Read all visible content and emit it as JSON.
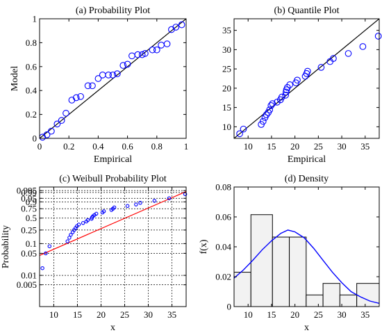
{
  "chart_data": [
    {
      "type": "scatter",
      "title": "(a) Probability Plot",
      "xlabel": "Empirical",
      "ylabel": "Model",
      "xlim": [
        0,
        1
      ],
      "ylim": [
        0,
        1
      ],
      "xticks": [
        0,
        0.2,
        0.4,
        0.6,
        0.8,
        1
      ],
      "xtick_labels": [
        "0",
        "0.2",
        "0.4",
        "0.6",
        "0.8",
        "1"
      ],
      "yticks": [
        0,
        0.2,
        0.4,
        0.6,
        0.8,
        1
      ],
      "ytick_labels": [
        "0",
        "0.2",
        "0.4",
        "0.6",
        "0.8",
        "1"
      ],
      "grid": false,
      "marker_color": "#0000ff",
      "line_color": "#000000",
      "reference_line": [
        [
          0,
          0
        ],
        [
          1,
          1
        ]
      ],
      "points": [
        [
          0.02,
          0.01
        ],
        [
          0.05,
          0.03
        ],
        [
          0.08,
          0.06
        ],
        [
          0.12,
          0.12
        ],
        [
          0.15,
          0.15
        ],
        [
          0.18,
          0.21
        ],
        [
          0.22,
          0.32
        ],
        [
          0.25,
          0.34
        ],
        [
          0.28,
          0.35
        ],
        [
          0.33,
          0.44
        ],
        [
          0.36,
          0.44
        ],
        [
          0.4,
          0.5
        ],
        [
          0.43,
          0.53
        ],
        [
          0.47,
          0.53
        ],
        [
          0.5,
          0.53
        ],
        [
          0.53,
          0.54
        ],
        [
          0.57,
          0.61
        ],
        [
          0.6,
          0.62
        ],
        [
          0.63,
          0.69
        ],
        [
          0.67,
          0.7
        ],
        [
          0.7,
          0.7
        ],
        [
          0.72,
          0.71
        ],
        [
          0.77,
          0.74
        ],
        [
          0.8,
          0.74
        ],
        [
          0.83,
          0.78
        ],
        [
          0.87,
          0.79
        ],
        [
          0.9,
          0.91
        ],
        [
          0.93,
          0.93
        ],
        [
          0.97,
          0.95
        ]
      ]
    },
    {
      "type": "scatter",
      "title": "(b) Quantile Plot",
      "xlabel": "Empirical",
      "ylabel": "",
      "xlim": [
        7,
        38
      ],
      "ylim": [
        7,
        38
      ],
      "xticks": [
        10,
        15,
        20,
        25,
        30,
        35
      ],
      "xtick_labels": [
        "10",
        "15",
        "20",
        "25",
        "30",
        "35"
      ],
      "yticks": [
        10,
        15,
        20,
        25,
        30,
        35
      ],
      "ytick_labels": [
        "10",
        "15",
        "20",
        "25",
        "30",
        "35"
      ],
      "grid": false,
      "marker_color": "#0000ff",
      "line_color": "#000000",
      "reference_line": [
        [
          7,
          7
        ],
        [
          38,
          38
        ]
      ],
      "points": [
        [
          8.2,
          8.2
        ],
        [
          9.0,
          9.4
        ],
        [
          12.8,
          10.6
        ],
        [
          13.2,
          11.4
        ],
        [
          13.6,
          12.4
        ],
        [
          13.9,
          13.1
        ],
        [
          14.3,
          13.7
        ],
        [
          14.6,
          14.4
        ],
        [
          14.9,
          15.5
        ],
        [
          15.2,
          16.0
        ],
        [
          16.2,
          16.4
        ],
        [
          16.9,
          17.0
        ],
        [
          17.2,
          17.7
        ],
        [
          18.0,
          18.2
        ],
        [
          18.1,
          19.0
        ],
        [
          18.2,
          19.6
        ],
        [
          18.4,
          20.2
        ],
        [
          18.9,
          20.9
        ],
        [
          20.2,
          21.4
        ],
        [
          20.5,
          22.1
        ],
        [
          22.2,
          23.1
        ],
        [
          22.5,
          23.8
        ],
        [
          22.7,
          24.4
        ],
        [
          25.6,
          25.4
        ],
        [
          27.5,
          26.9
        ],
        [
          28.2,
          27.7
        ],
        [
          31.4,
          29.0
        ],
        [
          34.5,
          30.8
        ],
        [
          37.8,
          33.5
        ]
      ]
    },
    {
      "type": "scatter",
      "title": "(c) Weibull Probability Plot",
      "xlabel": "x",
      "ylabel": "Probability",
      "xlim": [
        7,
        38
      ],
      "ylim": [
        0.001,
        0.999
      ],
      "yscale": "weibull",
      "xticks": [
        10,
        15,
        20,
        25,
        30,
        35
      ],
      "xtick_labels": [
        "10",
        "15",
        "20",
        "25",
        "30",
        "35"
      ],
      "yticks": [
        0.005,
        0.01,
        0.05,
        0.1,
        0.25,
        0.5,
        0.75,
        0.9,
        0.95,
        0.99,
        0.995
      ],
      "ytick_labels": [
        "0.005",
        "0.01",
        "0.05",
        "0.1",
        "0.25",
        "0.5",
        "0.75",
        "0.9",
        "0.95",
        "0.99",
        "0.995"
      ],
      "grid": true,
      "marker_color": "#0000ff",
      "line_color": "#ff0000",
      "reference_line": [
        [
          7,
          0.043
        ],
        [
          38,
          0.993
        ]
      ],
      "points": [
        [
          7.6,
          0.017
        ],
        [
          8.3,
          0.05
        ],
        [
          9.1,
          0.083
        ],
        [
          12.9,
          0.117
        ],
        [
          13.3,
          0.15
        ],
        [
          13.6,
          0.183
        ],
        [
          14.0,
          0.217
        ],
        [
          14.3,
          0.25
        ],
        [
          14.6,
          0.283
        ],
        [
          14.9,
          0.317
        ],
        [
          15.3,
          0.35
        ],
        [
          16.2,
          0.383
        ],
        [
          16.9,
          0.417
        ],
        [
          17.2,
          0.45
        ],
        [
          18.0,
          0.483
        ],
        [
          18.1,
          0.517
        ],
        [
          18.3,
          0.55
        ],
        [
          18.6,
          0.583
        ],
        [
          19.0,
          0.617
        ],
        [
          20.3,
          0.65
        ],
        [
          20.6,
          0.683
        ],
        [
          22.2,
          0.717
        ],
        [
          22.5,
          0.75
        ],
        [
          22.8,
          0.783
        ],
        [
          25.6,
          0.817
        ],
        [
          27.4,
          0.85
        ],
        [
          28.3,
          0.883
        ],
        [
          31.3,
          0.917
        ],
        [
          34.4,
          0.95
        ],
        [
          37.8,
          0.983
        ]
      ]
    },
    {
      "type": "bar",
      "title": "(d) Density",
      "xlabel": "x",
      "ylabel": "f(x)",
      "xlim": [
        7,
        38
      ],
      "ylim": [
        0,
        0.08
      ],
      "xticks": [
        10,
        15,
        20,
        25,
        30,
        35
      ],
      "xtick_labels": [
        "10",
        "15",
        "20",
        "25",
        "30",
        "35"
      ],
      "yticks": [
        0,
        0.02,
        0.04,
        0.06,
        0.08
      ],
      "ytick_labels": [
        "0",
        "0.02",
        "0.04",
        "0.06",
        "0.08"
      ],
      "grid": false,
      "bar_fill": "#f2f2f2",
      "bar_edge": "#000000",
      "line_color": "#0000ff",
      "bins": [
        {
          "x0": 7,
          "x1": 10.6,
          "value": 0.023
        },
        {
          "x0": 10.6,
          "x1": 15.2,
          "value": 0.0615
        },
        {
          "x0": 15.2,
          "x1": 18.8,
          "value": 0.0465
        },
        {
          "x0": 18.8,
          "x1": 22.4,
          "value": 0.0465
        },
        {
          "x0": 22.4,
          "x1": 26.0,
          "value": 0.0078
        },
        {
          "x0": 26.0,
          "x1": 29.6,
          "value": 0.0155
        },
        {
          "x0": 29.6,
          "x1": 33.2,
          "value": 0.0078
        },
        {
          "x0": 33.2,
          "x1": 38,
          "value": 0.0155
        }
      ],
      "curve": [
        [
          7,
          0.019
        ],
        [
          9,
          0.0245
        ],
        [
          11,
          0.031
        ],
        [
          13,
          0.038
        ],
        [
          15,
          0.044
        ],
        [
          17,
          0.049
        ],
        [
          18.5,
          0.0512
        ],
        [
          20,
          0.05
        ],
        [
          22,
          0.046
        ],
        [
          24,
          0.039
        ],
        [
          26,
          0.031
        ],
        [
          28,
          0.023
        ],
        [
          30,
          0.016
        ],
        [
          32,
          0.01
        ],
        [
          34,
          0.0065
        ],
        [
          36,
          0.0037
        ],
        [
          38,
          0.0022
        ]
      ]
    }
  ]
}
